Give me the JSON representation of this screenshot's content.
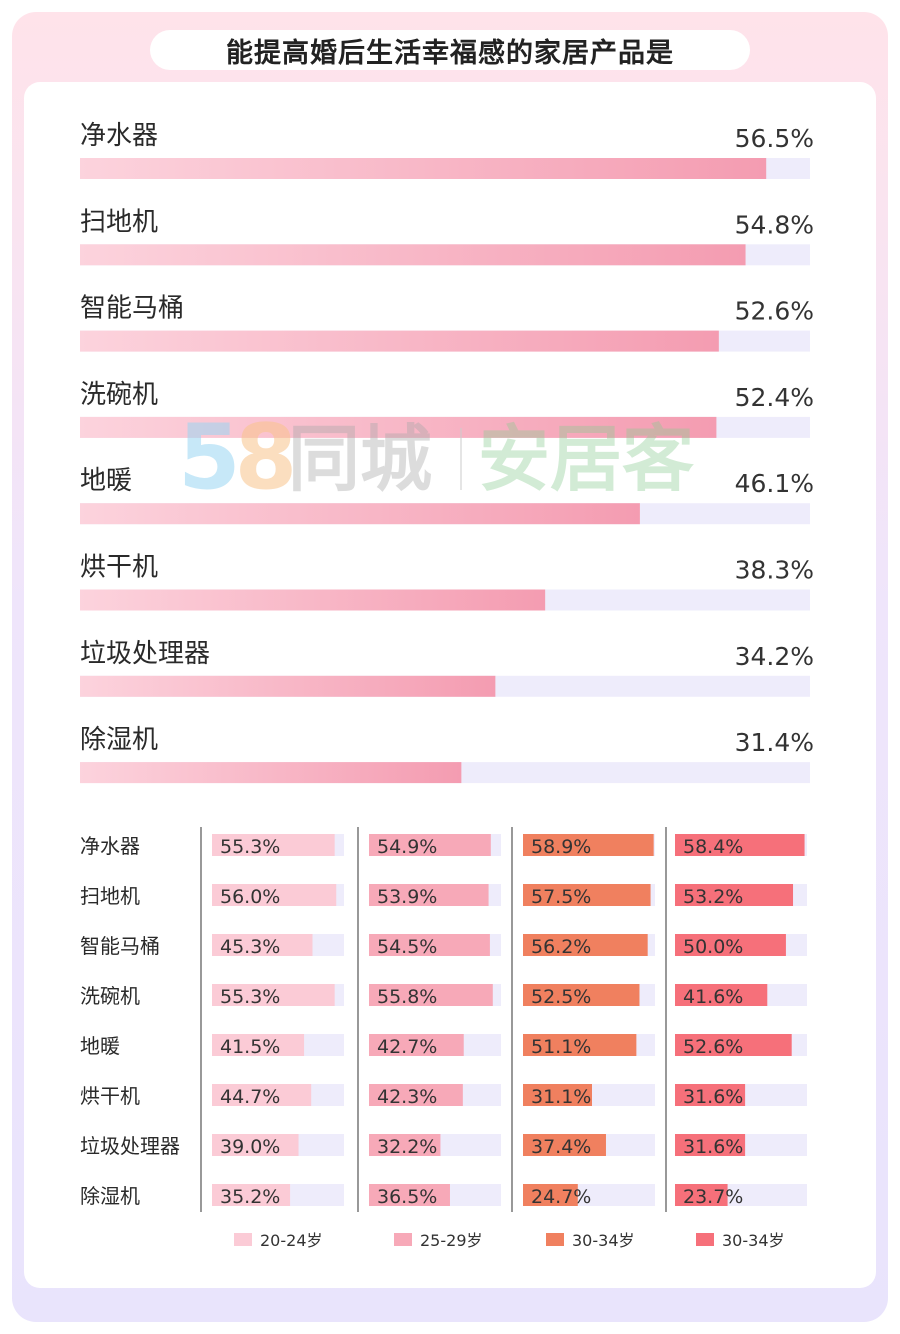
{
  "chart_data": [
    {
      "type": "bar",
      "orientation": "horizontal",
      "title": "能提高婚后生活幸福感的家居产品是",
      "categories": [
        "净水器",
        "扫地机",
        "智能马桶",
        "洗碗机",
        "地暖",
        "烘干机",
        "垃圾处理器",
        "除湿机"
      ],
      "values": [
        56.5,
        54.8,
        52.6,
        52.4,
        46.1,
        38.3,
        34.2,
        31.4
      ],
      "value_labels": [
        "56.5%",
        "54.8%",
        "52.6%",
        "52.4%",
        "46.1%",
        "38.3%",
        "34.2%",
        "31.4%"
      ],
      "xlim": [
        0,
        60
      ],
      "bar_color": "#f49fb3",
      "track_color": "#eeecfb"
    },
    {
      "type": "bar",
      "orientation": "horizontal",
      "grouping": "small-multiples",
      "categories": [
        "净水器",
        "扫地机",
        "智能马桶",
        "洗碗机",
        "地暖",
        "烘干机",
        "垃圾处理器",
        "除湿机"
      ],
      "xlim": [
        0,
        60
      ],
      "legend_position": "bottom",
      "series": [
        {
          "name": "20-24岁",
          "color": "#fbcbd6",
          "values": [
            55.3,
            56.0,
            45.3,
            55.3,
            41.5,
            44.7,
            39.0,
            35.2
          ],
          "labels": [
            "55.3%",
            "56.0%",
            "45.3%",
            "55.3%",
            "41.5%",
            "44.7%",
            "39.0%",
            "35.2%"
          ]
        },
        {
          "name": "25-29岁",
          "color": "#f7a9b8",
          "values": [
            54.9,
            53.9,
            54.5,
            55.8,
            42.7,
            42.3,
            32.2,
            36.5
          ],
          "labels": [
            "54.9%",
            "53.9%",
            "54.5%",
            "55.8%",
            "42.7%",
            "42.3%",
            "32.2%",
            "36.5%"
          ]
        },
        {
          "name": "30-34岁",
          "color": "#f0805f",
          "values": [
            58.9,
            57.5,
            56.2,
            52.5,
            51.1,
            31.1,
            37.4,
            24.7
          ],
          "labels": [
            "58.9%",
            "57.5%",
            "56.2%",
            "52.5%",
            "51.1%",
            "31.1%",
            "37.4%",
            "24.7%"
          ]
        },
        {
          "name": "30-34岁",
          "color": "#f6707a",
          "values": [
            58.4,
            53.2,
            50.0,
            41.6,
            52.6,
            31.6,
            31.6,
            23.7
          ],
          "labels": [
            "58.4%",
            "53.2%",
            "50.0%",
            "41.6%",
            "52.6%",
            "31.6%",
            "31.6%",
            "23.7%"
          ]
        }
      ],
      "track_color": "#eeecfb"
    }
  ],
  "watermark": {
    "digits": "58",
    "name1": "同城",
    "name2": "安居客"
  }
}
